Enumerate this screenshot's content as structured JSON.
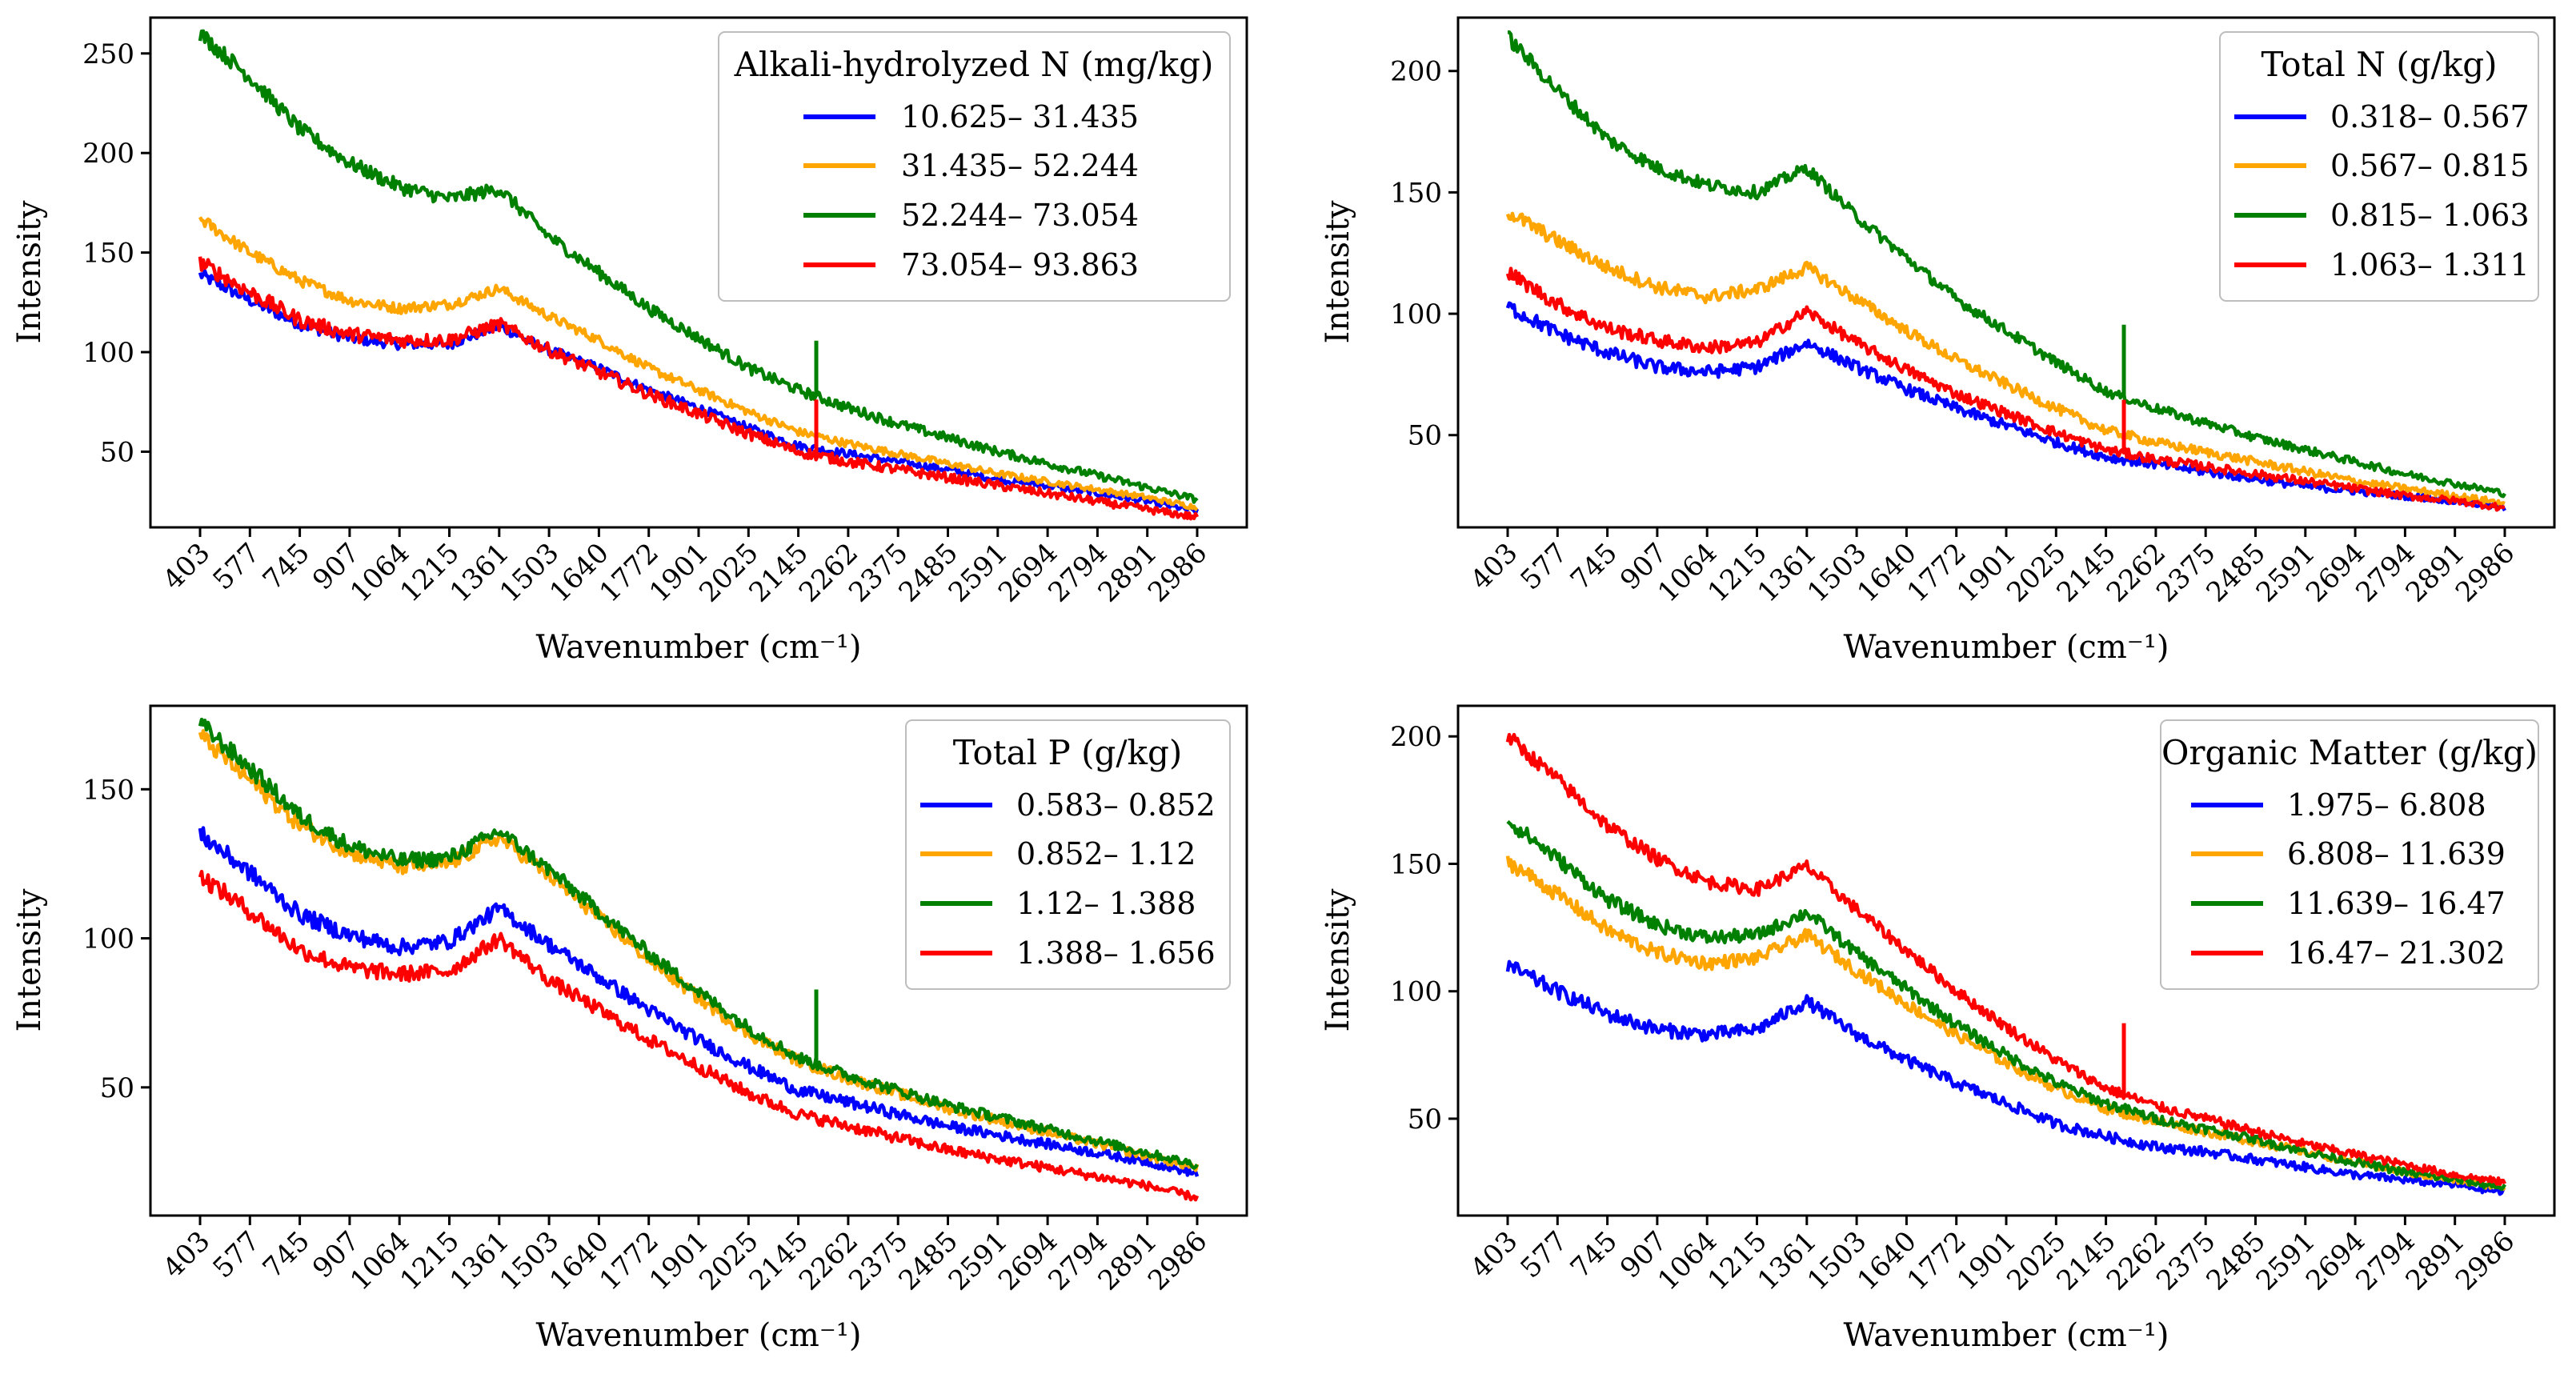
{
  "chart_data": [
    {
      "type": "line",
      "xlabel": "Wavenumber (cm⁻¹)",
      "ylabel": "Intensity",
      "x_ticks": [
        "403",
        "577",
        "745",
        "907",
        "1064",
        "1215",
        "1361",
        "1503",
        "1640",
        "1772",
        "1901",
        "2025",
        "2145",
        "2262",
        "2375",
        "2485",
        "2591",
        "2694",
        "2794",
        "2891",
        "2986"
      ],
      "ylim": [
        12,
        268
      ],
      "y_ticks": [
        50,
        100,
        150,
        200,
        250
      ],
      "legend_title": "Alkali-hydrolyzed N (mg/kg)",
      "legend_position": "top-right",
      "series": [
        {
          "name": "10.625– 31.435",
          "color": "#0000ff",
          "noise": 3,
          "spike": 0,
          "values": [
            139,
            126,
            114,
            107,
            104,
            104,
            113,
            101,
            92,
            81,
            72,
            62,
            53,
            49,
            45,
            41,
            36,
            33,
            29,
            25,
            20
          ]
        },
        {
          "name": "31.435– 52.244",
          "color": "#ffa500",
          "noise": 3,
          "spike": 0,
          "values": [
            167,
            150,
            136,
            126,
            122,
            124,
            132,
            118,
            106,
            92,
            81,
            70,
            60,
            54,
            49,
            44,
            39,
            35,
            31,
            27,
            22
          ]
        },
        {
          "name": "52.244– 73.054",
          "color": "#008000",
          "noise": 4,
          "spike": 28,
          "values": [
            260,
            238,
            212,
            195,
            183,
            177,
            182,
            158,
            140,
            122,
            107,
            92,
            81,
            72,
            64,
            57,
            50,
            44,
            38,
            32,
            26
          ]
        },
        {
          "name": "73.054– 93.863",
          "color": "#ff0000",
          "noise": 4,
          "spike": 28,
          "values": [
            145,
            130,
            116,
            109,
            106,
            106,
            114,
            101,
            90,
            79,
            69,
            59,
            50,
            45,
            41,
            37,
            33,
            29,
            25,
            21,
            17
          ]
        }
      ]
    },
    {
      "type": "line",
      "xlabel": "Wavenumber (cm⁻¹)",
      "ylabel": "Intensity",
      "x_ticks": [
        "403",
        "577",
        "745",
        "907",
        "1064",
        "1215",
        "1361",
        "1503",
        "1640",
        "1772",
        "1901",
        "2025",
        "2145",
        "2262",
        "2375",
        "2485",
        "2591",
        "2694",
        "2794",
        "2891",
        "2986"
      ],
      "ylim": [
        12,
        222
      ],
      "y_ticks": [
        50,
        100,
        150,
        200
      ],
      "legend_title": "Total N (g/kg)",
      "legend_position": "top-right",
      "series": [
        {
          "name": "0.318– 0.567",
          "color": "#0000ff",
          "noise": 3,
          "spike": 0,
          "values": [
            103,
            92,
            84,
            78,
            76,
            78,
            88,
            78,
            69,
            61,
            54,
            47,
            41,
            38,
            35,
            32,
            29,
            27,
            25,
            23,
            20
          ]
        },
        {
          "name": "0.567– 0.815",
          "color": "#ffa500",
          "noise": 3,
          "spike": 0,
          "values": [
            142,
            130,
            119,
            111,
            107,
            110,
            119,
            106,
            93,
            81,
            71,
            61,
            52,
            47,
            43,
            39,
            35,
            31,
            28,
            25,
            22
          ]
        },
        {
          "name": "0.815– 1.063",
          "color": "#008000",
          "noise": 3,
          "spike": 30,
          "values": [
            214,
            192,
            172,
            160,
            153,
            150,
            160,
            140,
            123,
            106,
            93,
            80,
            68,
            61,
            55,
            49,
            44,
            39,
            34,
            30,
            26
          ]
        },
        {
          "name": "1.063– 1.311",
          "color": "#ff0000",
          "noise": 3,
          "spike": 22,
          "values": [
            117,
            104,
            94,
            89,
            86,
            88,
            101,
            88,
            77,
            67,
            59,
            51,
            44,
            40,
            37,
            34,
            31,
            28,
            25,
            23,
            20
          ]
        }
      ]
    },
    {
      "type": "line",
      "xlabel": "Wavenumber (cm⁻¹)",
      "ylabel": "Intensity",
      "x_ticks": [
        "403",
        "577",
        "745",
        "907",
        "1064",
        "1215",
        "1361",
        "1503",
        "1640",
        "1772",
        "1901",
        "2025",
        "2145",
        "2262",
        "2375",
        "2485",
        "2591",
        "2694",
        "2794",
        "2891",
        "2986"
      ],
      "ylim": [
        7,
        178
      ],
      "y_ticks": [
        50,
        100,
        150
      ],
      "legend_title": "Total P (g/kg)",
      "legend_position": "top-right",
      "series": [
        {
          "name": "0.583– 0.852",
          "color": "#0000ff",
          "noise": 3,
          "spike": 0,
          "values": [
            135,
            122,
            108,
            101,
            97,
            99,
            110,
            98,
            87,
            76,
            66,
            57,
            49,
            45,
            41,
            37,
            34,
            31,
            28,
            25,
            21
          ]
        },
        {
          "name": "0.852– 1.12",
          "color": "#ffa500",
          "noise": 3,
          "spike": 0,
          "values": [
            168,
            153,
            138,
            129,
            124,
            125,
            134,
            121,
            107,
            93,
            80,
            68,
            59,
            53,
            48,
            43,
            39,
            35,
            31,
            27,
            23
          ]
        },
        {
          "name": "1.12– 1.388",
          "color": "#008000",
          "noise": 3,
          "spike": 25,
          "values": [
            172,
            157,
            141,
            131,
            126,
            127,
            136,
            123,
            109,
            95,
            82,
            70,
            60,
            54,
            49,
            44,
            40,
            36,
            32,
            28,
            24
          ]
        },
        {
          "name": "1.388– 1.656",
          "color": "#ff0000",
          "noise": 3,
          "spike": 0,
          "values": [
            121,
            109,
            96,
            90,
            88,
            89,
            100,
            86,
            76,
            66,
            57,
            48,
            41,
            37,
            33,
            29,
            26,
            23,
            20,
            17,
            13
          ]
        }
      ]
    },
    {
      "type": "line",
      "xlabel": "Wavenumber (cm⁻¹)",
      "ylabel": "Intensity",
      "x_ticks": [
        "403",
        "577",
        "745",
        "907",
        "1064",
        "1215",
        "1361",
        "1503",
        "1640",
        "1772",
        "1901",
        "2025",
        "2145",
        "2262",
        "2375",
        "2485",
        "2591",
        "2694",
        "2794",
        "2891",
        "2986"
      ],
      "ylim": [
        12,
        212
      ],
      "y_ticks": [
        50,
        100,
        150,
        200
      ],
      "legend_title": "Organic Matter (g/kg)",
      "legend_position": "top-right",
      "series": [
        {
          "name": "1.975– 6.808",
          "color": "#0000ff",
          "noise": 3,
          "spike": 0,
          "values": [
            110,
            100,
            91,
            85,
            83,
            85,
            96,
            83,
            73,
            64,
            56,
            48,
            43,
            39,
            37,
            34,
            31,
            28,
            26,
            24,
            21
          ]
        },
        {
          "name": "6.808– 11.639",
          "color": "#ffa500",
          "noise": 3,
          "spike": 0,
          "values": [
            151,
            138,
            124,
            115,
            111,
            113,
            122,
            108,
            95,
            83,
            72,
            62,
            54,
            49,
            45,
            41,
            37,
            33,
            29,
            26,
            23
          ]
        },
        {
          "name": "11.639– 16.47",
          "color": "#008000",
          "noise": 3,
          "spike": 0,
          "values": [
            167,
            152,
            136,
            126,
            121,
            122,
            131,
            115,
            101,
            87,
            75,
            64,
            56,
            50,
            46,
            42,
            37,
            33,
            29,
            26,
            23
          ]
        },
        {
          "name": "16.47– 21.302",
          "color": "#ff0000",
          "noise": 3,
          "spike": 28,
          "values": [
            200,
            183,
            165,
            152,
            143,
            140,
            149,
            132,
            116,
            100,
            86,
            73,
            62,
            55,
            50,
            45,
            40,
            36,
            32,
            28,
            25
          ]
        }
      ]
    }
  ]
}
